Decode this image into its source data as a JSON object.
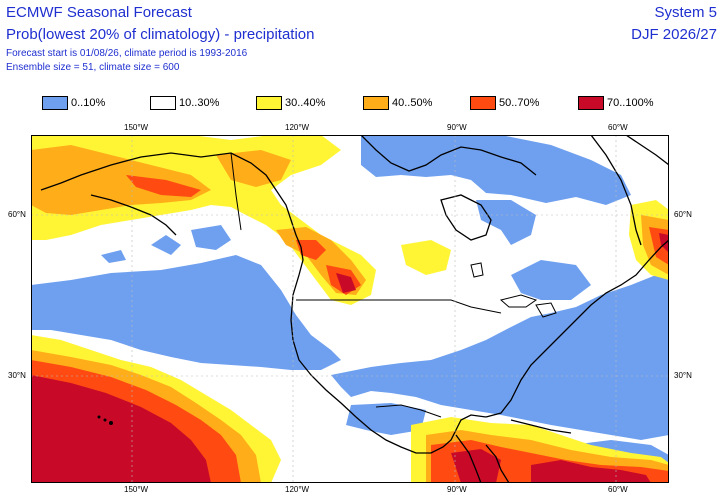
{
  "header": {
    "title": "ECMWF Seasonal Forecast",
    "subtitle": "Prob(lowest 20% of climatology) - precipitation",
    "forecast_info": "Forecast start is 01/08/26, climate period is 1993-2016",
    "ensemble_info": "Ensemble size = 51, climate size = 600",
    "system": "System 5",
    "season": "DJF 2026/27"
  },
  "legend": [
    {
      "label": "0..10%",
      "color": "#6fa0ef"
    },
    {
      "label": "10..30%",
      "color": "#ffffff"
    },
    {
      "label": "30..40%",
      "color": "#fff534"
    },
    {
      "label": "40..50%",
      "color": "#ffad18"
    },
    {
      "label": "50..70%",
      "color": "#ff4a12"
    },
    {
      "label": "70..100%",
      "color": "#c80a28"
    }
  ],
  "axes": {
    "lon_top": [
      "150°W",
      "120°W",
      "90°W",
      "60°W"
    ],
    "lon_bottom": [
      "150°W",
      "120°W",
      "90°W",
      "60°W"
    ],
    "lat_left": [
      "60°N",
      "30°N"
    ],
    "lat_right": [
      "60°N",
      "30°N"
    ]
  }
}
